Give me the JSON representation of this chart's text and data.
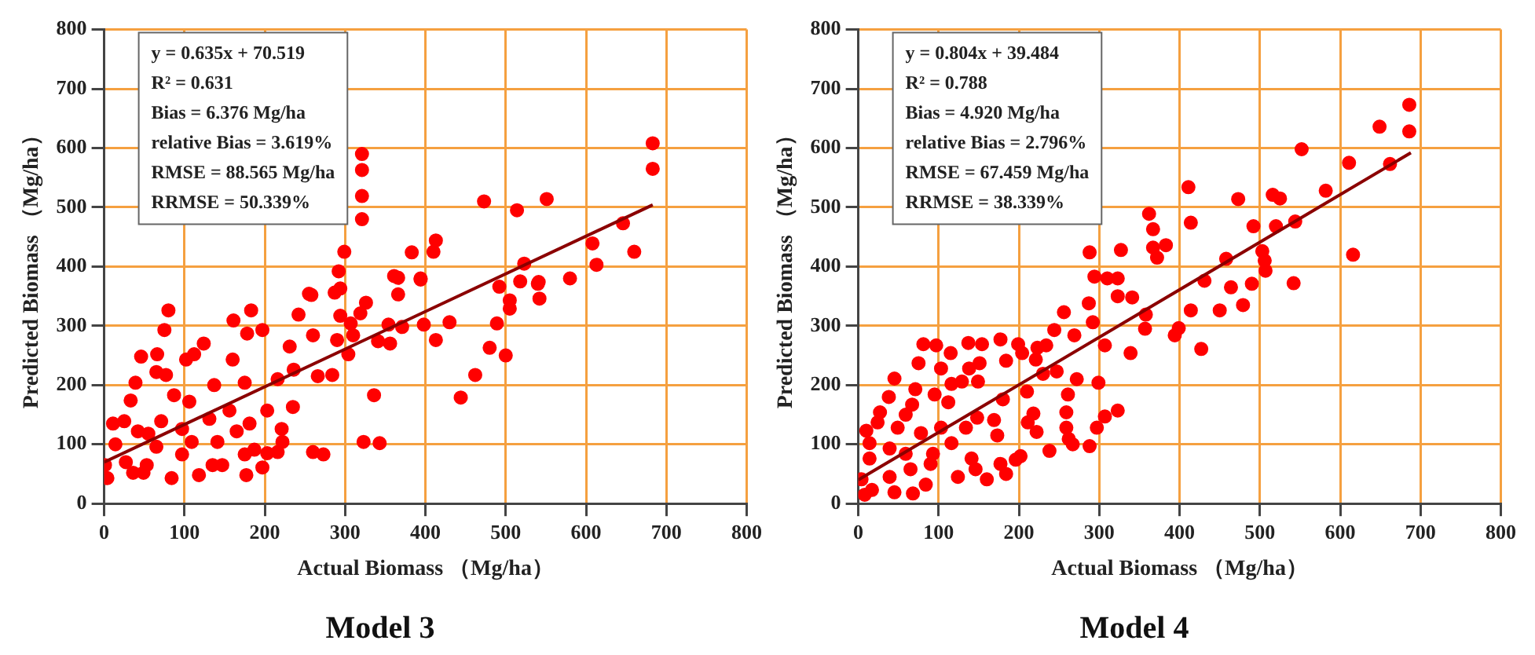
{
  "chart_data": [
    {
      "type": "scatter",
      "title": "Model 3",
      "xlabel": "Actual Biomass （Mg/ha）",
      "ylabel": "Predicted Biomass （Mg/ha）",
      "xlim": [
        0,
        800
      ],
      "ylim": [
        0,
        800
      ],
      "xticks": [
        0,
        100,
        200,
        300,
        400,
        500,
        600,
        700,
        800
      ],
      "yticks": [
        0,
        100,
        200,
        300,
        400,
        500,
        600,
        700,
        800
      ],
      "grid": true,
      "legend": false,
      "annotations": [
        "y = 0.635x + 70.519",
        "R² = 0.631",
        "Bias = 6.376 Mg/ha",
        "relative Bias = 3.619%",
        "RMSE = 88.565 Mg/ha",
        "RRMSE = 50.339%"
      ],
      "series": [
        {
          "marker": "circle",
          "color": "#ff0000",
          "x": [
            321,
            321,
            321,
            321,
            683,
            683,
            473,
            514,
            551,
            608,
            613,
            646,
            660,
            523,
            518,
            540,
            580,
            492,
            292,
            294,
            287,
            299,
            258,
            361,
            366,
            366,
            383,
            394,
            410,
            413,
            541,
            542,
            505,
            505,
            489,
            500,
            480,
            462,
            444,
            430,
            413,
            398,
            394,
            371,
            356,
            354,
            341,
            336,
            323,
            343,
            326,
            319,
            307,
            310,
            304,
            294,
            290,
            284,
            266,
            260,
            255,
            242,
            231,
            235,
            236,
            222,
            221,
            216,
            203,
            197,
            197,
            203,
            183,
            178,
            175,
            181,
            175,
            177,
            160,
            161,
            156,
            147,
            135,
            137,
            131,
            124,
            118,
            112,
            102,
            106,
            97,
            97,
            80,
            75,
            77,
            71,
            66,
            53,
            46,
            39,
            33,
            25,
            11,
            4,
            42,
            14,
            55,
            65,
            84,
            27,
            36,
            49,
            1,
            65,
            87,
            109,
            141,
            165,
            187,
            216,
            273,
            260
          ],
          "values": [
            590,
            563,
            519,
            480,
            608,
            565,
            510,
            495,
            514,
            439,
            403,
            473,
            425,
            405,
            375,
            371,
            380,
            366,
            392,
            363,
            356,
            425,
            352,
            384,
            381,
            353,
            424,
            378,
            425,
            444,
            374,
            346,
            343,
            329,
            304,
            250,
            263,
            217,
            179,
            306,
            276,
            302,
            380,
            298,
            270,
            302,
            274,
            183,
            104,
            102,
            339,
            321,
            304,
            284,
            252,
            317,
            276,
            217,
            215,
            284,
            354,
            319,
            265,
            163,
            226,
            104,
            126,
            210,
            157,
            293,
            61,
            85,
            326,
            287,
            204,
            135,
            83,
            48,
            243,
            309,
            157,
            65,
            65,
            200,
            143,
            270,
            48,
            252,
            243,
            172,
            126,
            83,
            326,
            293,
            217,
            139,
            252,
            65,
            248,
            204,
            174,
            139,
            135,
            43,
            122,
            100,
            118,
            96,
            43,
            70,
            52,
            52,
            65,
            222,
            183,
            104,
            104,
            122,
            91,
            87,
            83,
            87
          ]
        },
        {
          "type": "line",
          "color": "#8b0000",
          "x": [
            0,
            683
          ],
          "values": [
            70,
            504
          ]
        }
      ]
    },
    {
      "type": "scatter",
      "title": "Model 4",
      "xlabel": "Actual Biomass （Mg/ha）",
      "ylabel": "Predicted Biomass （Mg/ha）",
      "xlim": [
        0,
        800
      ],
      "ylim": [
        0,
        800
      ],
      "xticks": [
        0,
        100,
        200,
        300,
        400,
        500,
        600,
        700,
        800
      ],
      "yticks": [
        0,
        100,
        200,
        300,
        400,
        500,
        600,
        700,
        800
      ],
      "grid": true,
      "legend": false,
      "annotations": [
        "y = 0.804x + 39.484",
        "R² = 0.788",
        "Bias = 4.920 Mg/ha",
        "relative Bias = 2.796%",
        "RMSE = 67.459 Mg/ha",
        "RRMSE = 38.339%"
      ],
      "series": [
        {
          "marker": "circle",
          "color": "#ff0000",
          "x": [
            686,
            686,
            649,
            662,
            611,
            616,
            552,
            582,
            516,
            525,
            473,
            492,
            520,
            544,
            411,
            414,
            458,
            503,
            506,
            507,
            542,
            490,
            464,
            431,
            362,
            367,
            367,
            372,
            383,
            288,
            294,
            327,
            310,
            323,
            341,
            287,
            479,
            450,
            414,
            399,
            394,
            427,
            358,
            357,
            323,
            339,
            323,
            307,
            299,
            307,
            288,
            297,
            292,
            269,
            272,
            261,
            259,
            262,
            267,
            259,
            256,
            244,
            234,
            247,
            221,
            223,
            230,
            238,
            222,
            218,
            211,
            210,
            204,
            199,
            202,
            196,
            184,
            180,
            177,
            177,
            184,
            173,
            169,
            154,
            151,
            149,
            148,
            146,
            137,
            138,
            134,
            129,
            124,
            115,
            116,
            112,
            103,
            97,
            95,
            93,
            84,
            81,
            75,
            71,
            67,
            59,
            49,
            45,
            38,
            27,
            24,
            14,
            10,
            4,
            17,
            45,
            68,
            39,
            65,
            90,
            116,
            141,
            160,
            59,
            39,
            78,
            103,
            8,
            14
          ],
          "values": [
            673,
            628,
            636,
            573,
            575,
            420,
            598,
            528,
            521,
            515,
            514,
            468,
            468,
            476,
            534,
            474,
            413,
            426,
            410,
            393,
            372,
            371,
            365,
            376,
            489,
            463,
            432,
            415,
            436,
            424,
            383,
            428,
            380,
            380,
            348,
            338,
            335,
            326,
            326,
            296,
            284,
            261,
            319,
            295,
            350,
            254,
            157,
            267,
            204,
            147,
            97,
            128,
            306,
            284,
            210,
            184,
            154,
            109,
            100,
            128,
            323,
            293,
            267,
            223,
            243,
            263,
            219,
            89,
            121,
            152,
            137,
            189,
            254,
            269,
            80,
            74,
            241,
            176,
            277,
            67,
            50,
            115,
            141,
            269,
            237,
            206,
            145,
            58,
            271,
            228,
            128,
            206,
            45,
            254,
            202,
            171,
            228,
            267,
            184,
            84,
            32,
            269,
            237,
            193,
            167,
            150,
            128,
            211,
            180,
            154,
            137,
            102,
            123,
            41,
            23,
            19,
            17,
            45,
            58,
            67,
            102,
            76,
            41,
            84,
            93,
            119,
            128,
            15,
            76
          ]
        },
        {
          "type": "line",
          "color": "#8b0000",
          "x": [
            0,
            688
          ],
          "values": [
            40,
            592
          ]
        }
      ]
    }
  ]
}
